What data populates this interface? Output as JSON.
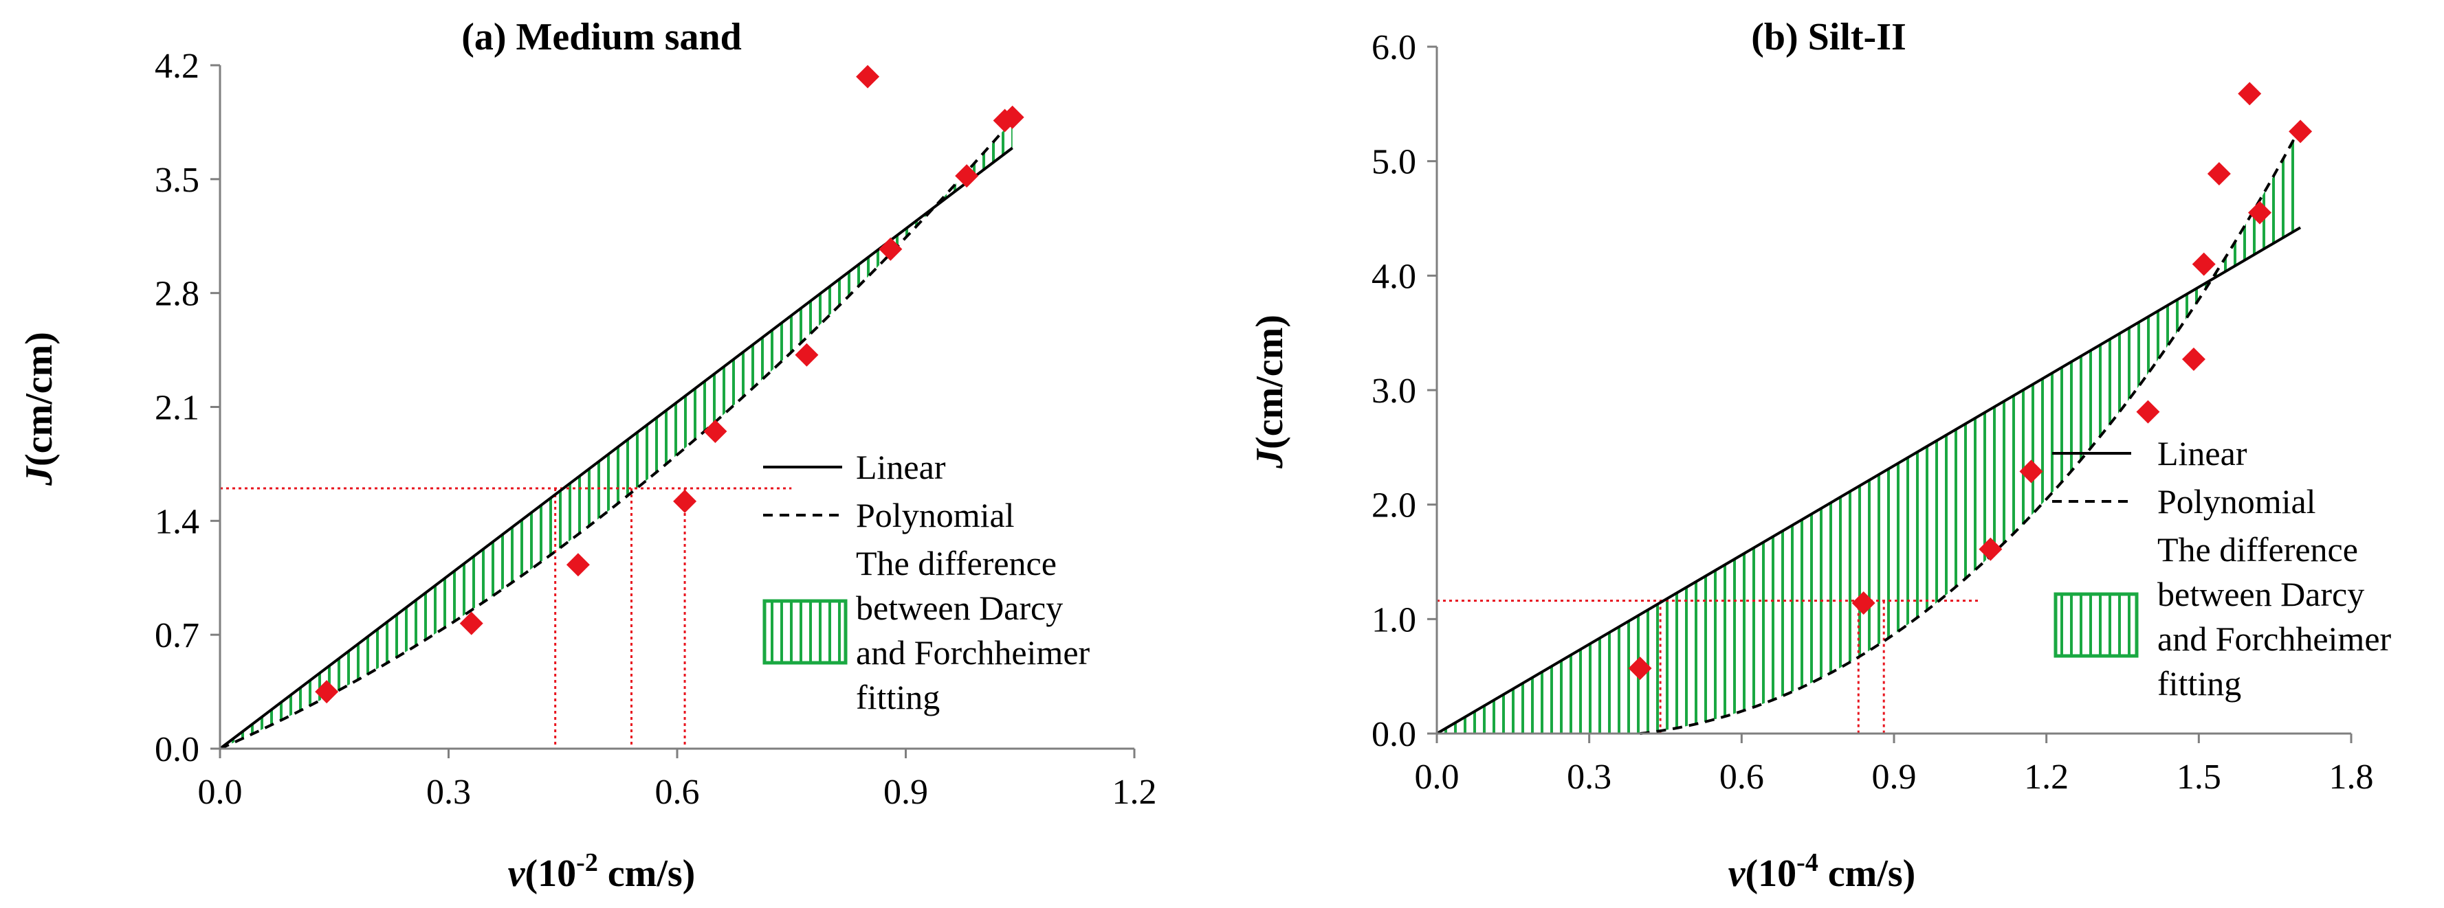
{
  "legend": {
    "linear": "Linear",
    "polynomial": "Polynomial",
    "diff_lines": [
      "The difference",
      "between Darcy",
      "and Forchheimer",
      "fitting"
    ]
  },
  "colors": {
    "point": "#e8141e",
    "hatch": "#1aa842",
    "guide": "#e8141e",
    "axis": "#7f7f7f",
    "line": "#000000"
  },
  "chart_data": [
    {
      "type": "scatter",
      "title": "(a) Medium sand",
      "xlabel_italic": "v",
      "xlabel_rest": "(10",
      "xlabel_sup": "-2",
      "xlabel_tail": " cm/s)",
      "ylabel_italic": "J",
      "ylabel_rest": "(cm/cm)",
      "xlim": [
        0,
        1.2
      ],
      "ylim": [
        0,
        4.2
      ],
      "xticks": [
        "0.0",
        "0.3",
        "0.6",
        "0.9",
        "1.2"
      ],
      "yticks": [
        "0.0",
        "0.7",
        "1.4",
        "2.1",
        "2.8",
        "3.5",
        "4.2"
      ],
      "points": [
        [
          0.14,
          0.35
        ],
        [
          0.33,
          0.77
        ],
        [
          0.47,
          1.13
        ],
        [
          0.61,
          1.52
        ],
        [
          0.65,
          1.95
        ],
        [
          0.77,
          2.42
        ],
        [
          0.85,
          4.13
        ],
        [
          0.88,
          3.07
        ],
        [
          0.98,
          3.52
        ],
        [
          1.03,
          3.86
        ],
        [
          1.04,
          3.88
        ]
      ],
      "linear": {
        "slope": 3.55,
        "x_max": 1.04
      },
      "polynomial": {
        "a": 1.6,
        "b": 2.05,
        "x_max": 1.04
      },
      "guide_y": 1.6,
      "guide_x_end": 0.75,
      "guide_vx": [
        0.44,
        0.54,
        0.61
      ]
    },
    {
      "type": "scatter",
      "title": "(b) Silt-II",
      "xlabel_italic": "v",
      "xlabel_rest": "(10",
      "xlabel_sup": "-4",
      "xlabel_tail": " cm/s)",
      "ylabel_italic": "J",
      "ylabel_rest": "(cm/cm)",
      "xlim": [
        0,
        1.8
      ],
      "ylim": [
        0,
        6.0
      ],
      "xticks": [
        "0.0",
        "0.3",
        "0.6",
        "0.9",
        "1.2",
        "1.5",
        "1.8"
      ],
      "yticks": [
        "0.0",
        "1.0",
        "2.0",
        "3.0",
        "4.0",
        "5.0",
        "6.0"
      ],
      "points": [
        [
          0.4,
          0.57
        ],
        [
          0.84,
          1.14
        ],
        [
          1.09,
          1.61
        ],
        [
          1.17,
          2.29
        ],
        [
          1.4,
          2.81
        ],
        [
          1.49,
          3.27
        ],
        [
          1.51,
          4.1
        ],
        [
          1.54,
          4.89
        ],
        [
          1.6,
          5.59
        ],
        [
          1.62,
          4.55
        ],
        [
          1.7,
          5.26
        ]
      ],
      "linear": {
        "slope": 2.6,
        "x_max": 1.7
      },
      "polynomial": {
        "a": 2.5,
        "b": 1.2,
        "c": -0.68,
        "x_start": 0.4,
        "x_max": 1.7
      },
      "guide_y": 1.16,
      "guide_x_end": 1.07,
      "guide_vx": [
        0.44,
        0.83,
        0.88
      ]
    }
  ]
}
